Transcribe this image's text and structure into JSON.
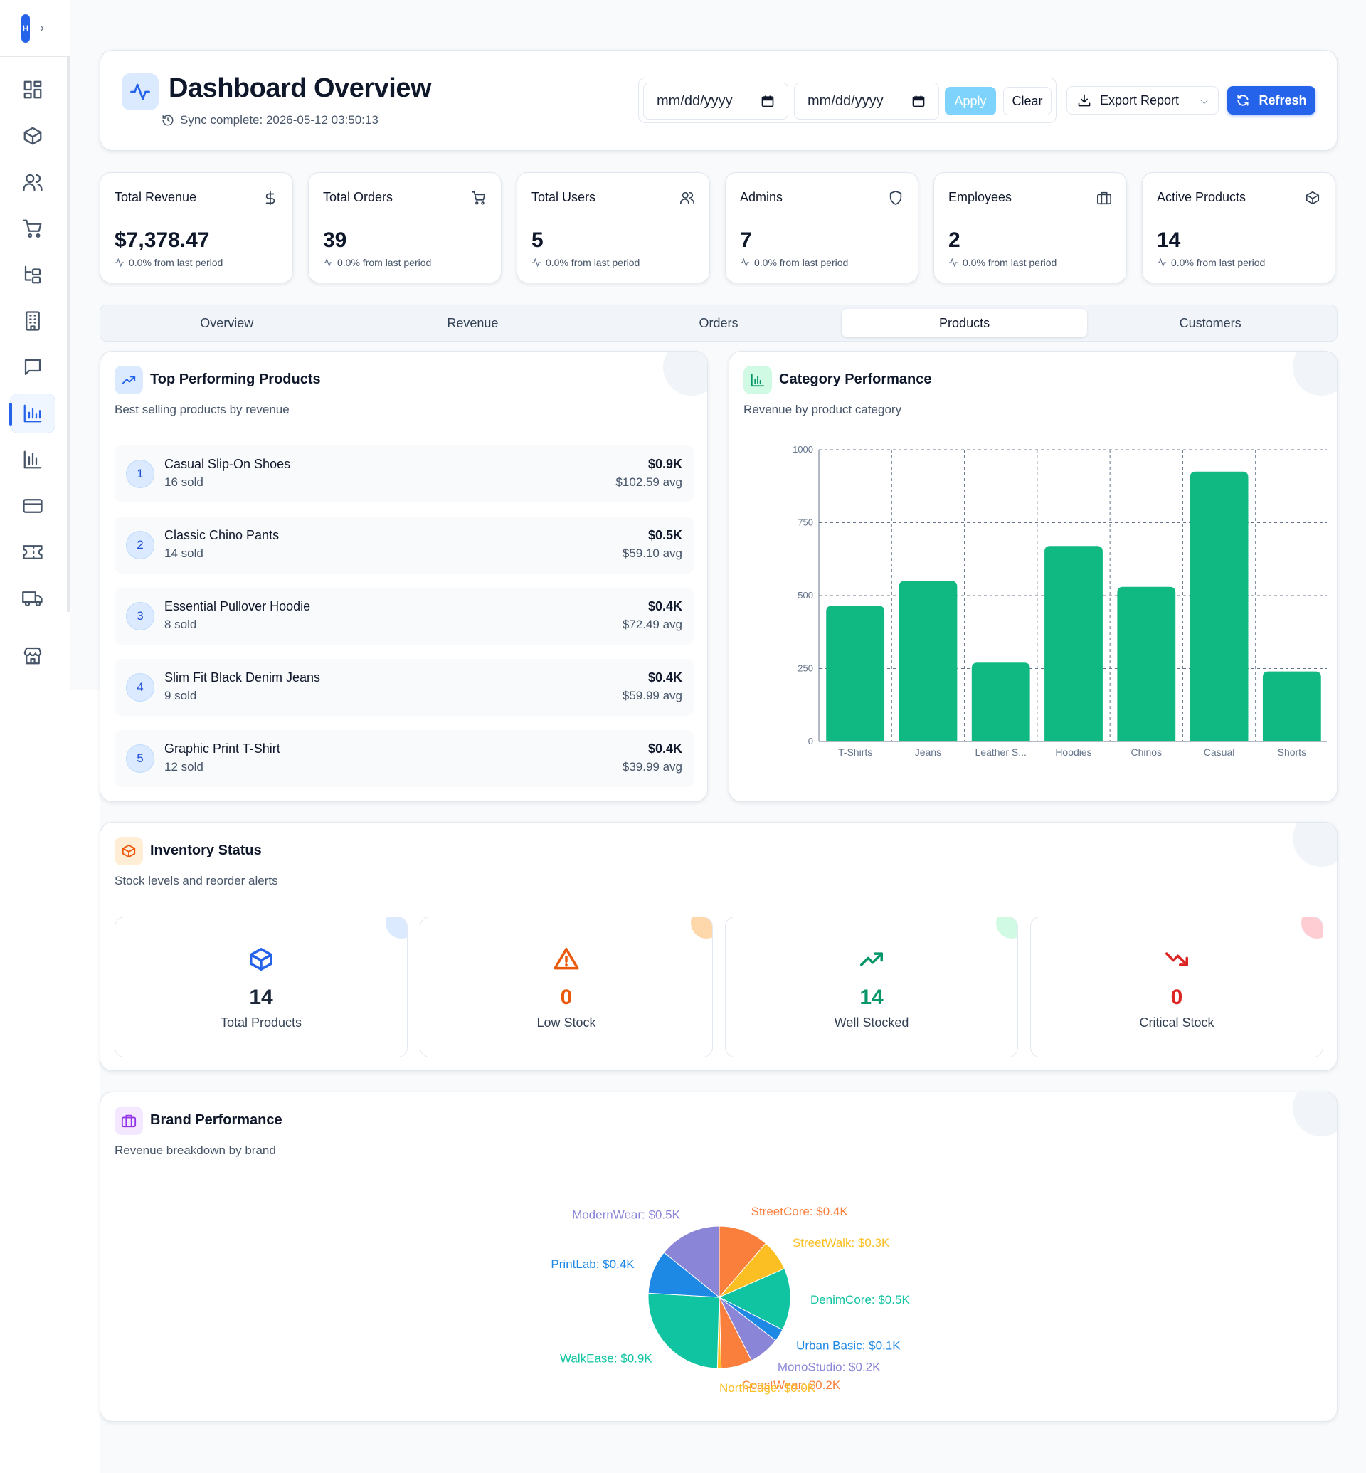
{
  "sidebar": {
    "logo_letter": "H",
    "items": [
      {
        "icon": "dashboard-grid-icon"
      },
      {
        "icon": "package-icon"
      },
      {
        "icon": "users-icon"
      },
      {
        "icon": "cart-icon"
      },
      {
        "icon": "hierarchy-icon"
      },
      {
        "icon": "building-icon"
      },
      {
        "icon": "message-icon"
      },
      {
        "icon": "analytics-icon",
        "active": true
      },
      {
        "icon": "bar-chart-icon"
      },
      {
        "icon": "credit-card-icon"
      },
      {
        "icon": "ticket-icon"
      },
      {
        "icon": "truck-icon"
      },
      {
        "icon": "store-icon"
      }
    ]
  },
  "header": {
    "title": "Dashboard Overview",
    "sync_status": "Sync complete: 2026-05-12 03:50:13",
    "start_date_placeholder": "mm/dd/yyyy",
    "end_date_placeholder": "mm/dd/yyyy",
    "apply_label": "Apply",
    "clear_label": "Clear",
    "export_label": "Export Report",
    "refresh_label": "Refresh"
  },
  "stats": [
    {
      "label": "Total Revenue",
      "value": "$7,378.47",
      "change": "0.0% from last period",
      "icon": "dollar-icon"
    },
    {
      "label": "Total Orders",
      "value": "39",
      "change": "0.0% from last period",
      "icon": "cart-icon"
    },
    {
      "label": "Total Users",
      "value": "5",
      "change": "0.0% from last period",
      "icon": "users-icon"
    },
    {
      "label": "Admins",
      "value": "7",
      "change": "0.0% from last period",
      "icon": "shield-icon"
    },
    {
      "label": "Employees",
      "value": "2",
      "change": "0.0% from last period",
      "icon": "briefcase-icon"
    },
    {
      "label": "Active Products",
      "value": "14",
      "change": "0.0% from last period",
      "icon": "package-icon"
    }
  ],
  "tabs": [
    {
      "label": "Overview"
    },
    {
      "label": "Revenue"
    },
    {
      "label": "Orders"
    },
    {
      "label": "Products",
      "active": true
    },
    {
      "label": "Customers"
    }
  ],
  "top_products": {
    "title": "Top Performing Products",
    "subtitle": "Best selling products by revenue",
    "items": [
      {
        "rank": "1",
        "name": "Casual Slip-On Shoes",
        "sold": "16 sold",
        "revenue": "$0.9K",
        "avg": "$102.59 avg"
      },
      {
        "rank": "2",
        "name": "Classic Chino Pants",
        "sold": "14 sold",
        "revenue": "$0.5K",
        "avg": "$59.10 avg"
      },
      {
        "rank": "3",
        "name": "Essential Pullover Hoodie",
        "sold": "8 sold",
        "revenue": "$0.4K",
        "avg": "$72.49 avg"
      },
      {
        "rank": "4",
        "name": "Slim Fit Black Denim Jeans",
        "sold": "9 sold",
        "revenue": "$0.4K",
        "avg": "$59.99 avg"
      },
      {
        "rank": "5",
        "name": "Graphic Print T-Shirt",
        "sold": "12 sold",
        "revenue": "$0.4K",
        "avg": "$39.99 avg"
      }
    ]
  },
  "category_performance": {
    "title": "Category Performance",
    "subtitle": "Revenue by product category"
  },
  "inventory": {
    "title": "Inventory Status",
    "subtitle": "Stock levels and reorder alerts",
    "cards": [
      {
        "value": "14",
        "label": "Total Products",
        "color": "#1e293b",
        "accent": "#2563eb",
        "icon": "package-icon",
        "dot": "#dbeafe"
      },
      {
        "value": "0",
        "label": "Low Stock",
        "color": "#ea580c",
        "accent": "#ea580c",
        "icon": "warning-icon",
        "dot": "#fed7aa"
      },
      {
        "value": "14",
        "label": "Well Stocked",
        "color": "#059669",
        "accent": "#059669",
        "icon": "trending-up-icon",
        "dot": "#d1fae5"
      },
      {
        "value": "0",
        "label": "Critical Stock",
        "color": "#dc2626",
        "accent": "#dc2626",
        "icon": "trending-down-icon",
        "dot": "#fecdd3"
      }
    ]
  },
  "brand_performance": {
    "title": "Brand Performance",
    "subtitle": "Revenue breakdown by brand"
  },
  "chart_data": [
    {
      "type": "bar",
      "categories": [
        "T-Shirts",
        "Jeans",
        "Leather S...",
        "Hoodies",
        "Chinos",
        "Casual",
        "Shorts"
      ],
      "values": [
        465,
        550,
        270,
        670,
        530,
        925,
        240
      ],
      "ylim": [
        0,
        1000
      ],
      "yticks": [
        0,
        250,
        500,
        750,
        1000
      ],
      "grid": true,
      "color": "#10b981"
    },
    {
      "type": "pie",
      "labels": [
        "StreetCore: $0.4K",
        "StreetWalk: $0.3K",
        "DenimCore: $0.5K",
        "Urban Basic: $0.1K",
        "MonoStudio: $0.2K",
        "CoastWear: $0.2K",
        "NorthEdge: $0.0K",
        "WalkEase: $0.9K",
        "PrintLab: $0.4K",
        "ModernWear: $0.5K"
      ],
      "values": [
        0.4,
        0.25,
        0.5,
        0.1,
        0.25,
        0.25,
        0.03,
        0.9,
        0.35,
        0.5
      ],
      "colors": [
        "#fb7f3c",
        "#fbbf24",
        "#10c4a2",
        "#1e88e5",
        "#8b85d8",
        "#fb7f3c",
        "#fbbf24",
        "#10c4a2",
        "#1e88e5",
        "#8b85d8"
      ]
    }
  ]
}
